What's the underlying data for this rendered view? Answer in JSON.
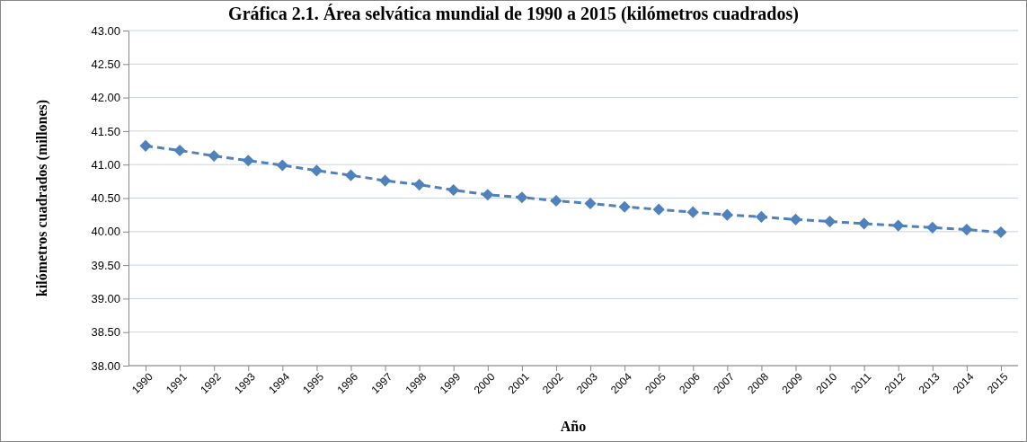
{
  "chart_data": {
    "type": "line",
    "title": "Gráfica 2.1. Área selvática mundial de 1990 a 2015 (kilómetros cuadrados)",
    "xlabel": "Año",
    "ylabel": "kilómetros cuadrados (millones)",
    "categories": [
      "1990",
      "1991",
      "1992",
      "1993",
      "1994",
      "1995",
      "1996",
      "1997",
      "1998",
      "1999",
      "2000",
      "2001",
      "2002",
      "2003",
      "2004",
      "2005",
      "2006",
      "2007",
      "2008",
      "2009",
      "2010",
      "2011",
      "2012",
      "2013",
      "2014",
      "2015"
    ],
    "series": [
      {
        "color": "#4f81bd",
        "values": [
          41.28,
          41.21,
          41.13,
          41.06,
          40.99,
          40.91,
          40.84,
          40.76,
          40.7,
          40.62,
          40.55,
          40.51,
          40.46,
          40.42,
          40.37,
          40.33,
          40.29,
          40.25,
          40.22,
          40.18,
          40.15,
          40.12,
          40.09,
          40.06,
          40.03,
          39.99
        ]
      }
    ],
    "ylim": [
      38,
      43
    ],
    "yticks": [
      {
        "value": 38,
        "label": "38.00"
      },
      {
        "value": 38.5,
        "label": "38.50"
      },
      {
        "value": 39,
        "label": "39.00"
      },
      {
        "value": 39.5,
        "label": "39.50"
      },
      {
        "value": 40,
        "label": "40.00"
      },
      {
        "value": 40.5,
        "label": "40.50"
      },
      {
        "value": 41,
        "label": "41.00"
      },
      {
        "value": 41.5,
        "label": "41.50"
      },
      {
        "value": 42,
        "label": "42.00"
      },
      {
        "value": 42.5,
        "label": "42.50"
      },
      {
        "value": 43,
        "label": "43.00"
      }
    ],
    "grid": "y",
    "marker": "diamond",
    "line_style": "dashed"
  }
}
